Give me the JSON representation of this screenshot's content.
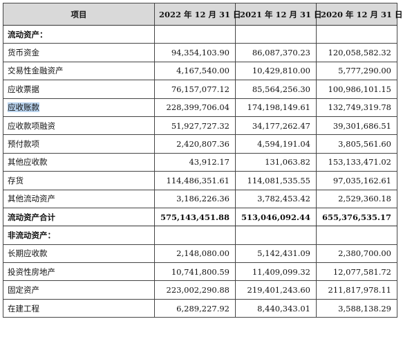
{
  "columns": [
    "项目",
    "2022 年 12 月 31 日",
    "2021 年 12 月 31 日",
    "2020 年 12 月 31 日"
  ],
  "rows": [
    {
      "label": "流动资产：",
      "values": [
        "",
        "",
        ""
      ],
      "kind": "section"
    },
    {
      "label": "货币资金",
      "values": [
        "94,354,103.90",
        "86,087,370.23",
        "120,058,582.32"
      ]
    },
    {
      "label": "交易性金融资产",
      "values": [
        "4,167,540.00",
        "10,429,810.00",
        "5,777,290.00"
      ]
    },
    {
      "label": "应收票据",
      "values": [
        "76,157,077.12",
        "85,564,256.30",
        "100,986,101.15"
      ]
    },
    {
      "label": "应收账款",
      "values": [
        "228,399,706.04",
        "174,198,149.61",
        "132,749,319.78"
      ],
      "highlighted": true
    },
    {
      "label": "应收款项融资",
      "values": [
        "51,927,727.32",
        "34,177,262.47",
        "39,301,686.51"
      ]
    },
    {
      "label": "预付款项",
      "values": [
        "2,420,807.36",
        "4,594,191.04",
        "3,805,561.60"
      ]
    },
    {
      "label": "其他应收款",
      "values": [
        "43,912.17",
        "131,063.82",
        "153,133,471.02"
      ]
    },
    {
      "label": "存货",
      "values": [
        "114,486,351.61",
        "114,081,535.55",
        "97,035,162.61"
      ]
    },
    {
      "label": "其他流动资产",
      "values": [
        "3,186,226.36",
        "3,782,453.42",
        "2,529,360.18"
      ]
    },
    {
      "label": "流动资产合计",
      "values": [
        "575,143,451.88",
        "513,046,092.44",
        "655,376,535.17"
      ],
      "kind": "total"
    },
    {
      "label": "非流动资产：",
      "values": [
        "",
        "",
        ""
      ],
      "kind": "section"
    },
    {
      "label": "长期应收款",
      "values": [
        "2,148,080.00",
        "5,142,431.09",
        "2,380,700.00"
      ]
    },
    {
      "label": "投资性房地产",
      "values": [
        "10,741,800.59",
        "11,409,099.32",
        "12,077,581.72"
      ]
    },
    {
      "label": "固定资产",
      "values": [
        "223,002,290.88",
        "219,401,243.60",
        "211,817,978.11"
      ]
    },
    {
      "label": "在建工程",
      "values": [
        "6,289,227.92",
        "8,440,343.01",
        "3,588,138.29"
      ]
    }
  ]
}
